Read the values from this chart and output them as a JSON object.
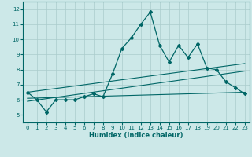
{
  "title": "",
  "xlabel": "Humidex (Indice chaleur)",
  "bg_color": "#cce8e8",
  "line_color": "#006666",
  "grid_color": "#aacccc",
  "xlim": [
    -0.5,
    23.5
  ],
  "ylim": [
    4.5,
    12.5
  ],
  "xticks": [
    0,
    1,
    2,
    3,
    4,
    5,
    6,
    7,
    8,
    9,
    10,
    11,
    12,
    13,
    14,
    15,
    16,
    17,
    18,
    19,
    20,
    21,
    22,
    23
  ],
  "yticks": [
    5,
    6,
    7,
    8,
    9,
    10,
    11,
    12
  ],
  "series1_x": [
    0,
    1,
    2,
    3,
    4,
    5,
    6,
    7,
    8,
    9,
    10,
    11,
    12,
    13,
    14,
    15,
    16,
    17,
    18,
    19,
    20,
    21,
    22,
    23
  ],
  "series1_y": [
    6.5,
    6.0,
    5.2,
    6.0,
    6.0,
    6.0,
    6.2,
    6.4,
    6.2,
    7.7,
    9.4,
    10.1,
    11.0,
    11.8,
    9.6,
    8.5,
    9.6,
    8.8,
    9.7,
    8.1,
    8.0,
    7.2,
    6.8,
    6.4
  ],
  "series2_x": [
    0,
    23
  ],
  "series2_y": [
    6.5,
    8.4
  ],
  "series3_x": [
    0,
    23
  ],
  "series3_y": [
    6.1,
    6.5
  ],
  "series4_x": [
    0,
    23
  ],
  "series4_y": [
    5.9,
    7.9
  ]
}
